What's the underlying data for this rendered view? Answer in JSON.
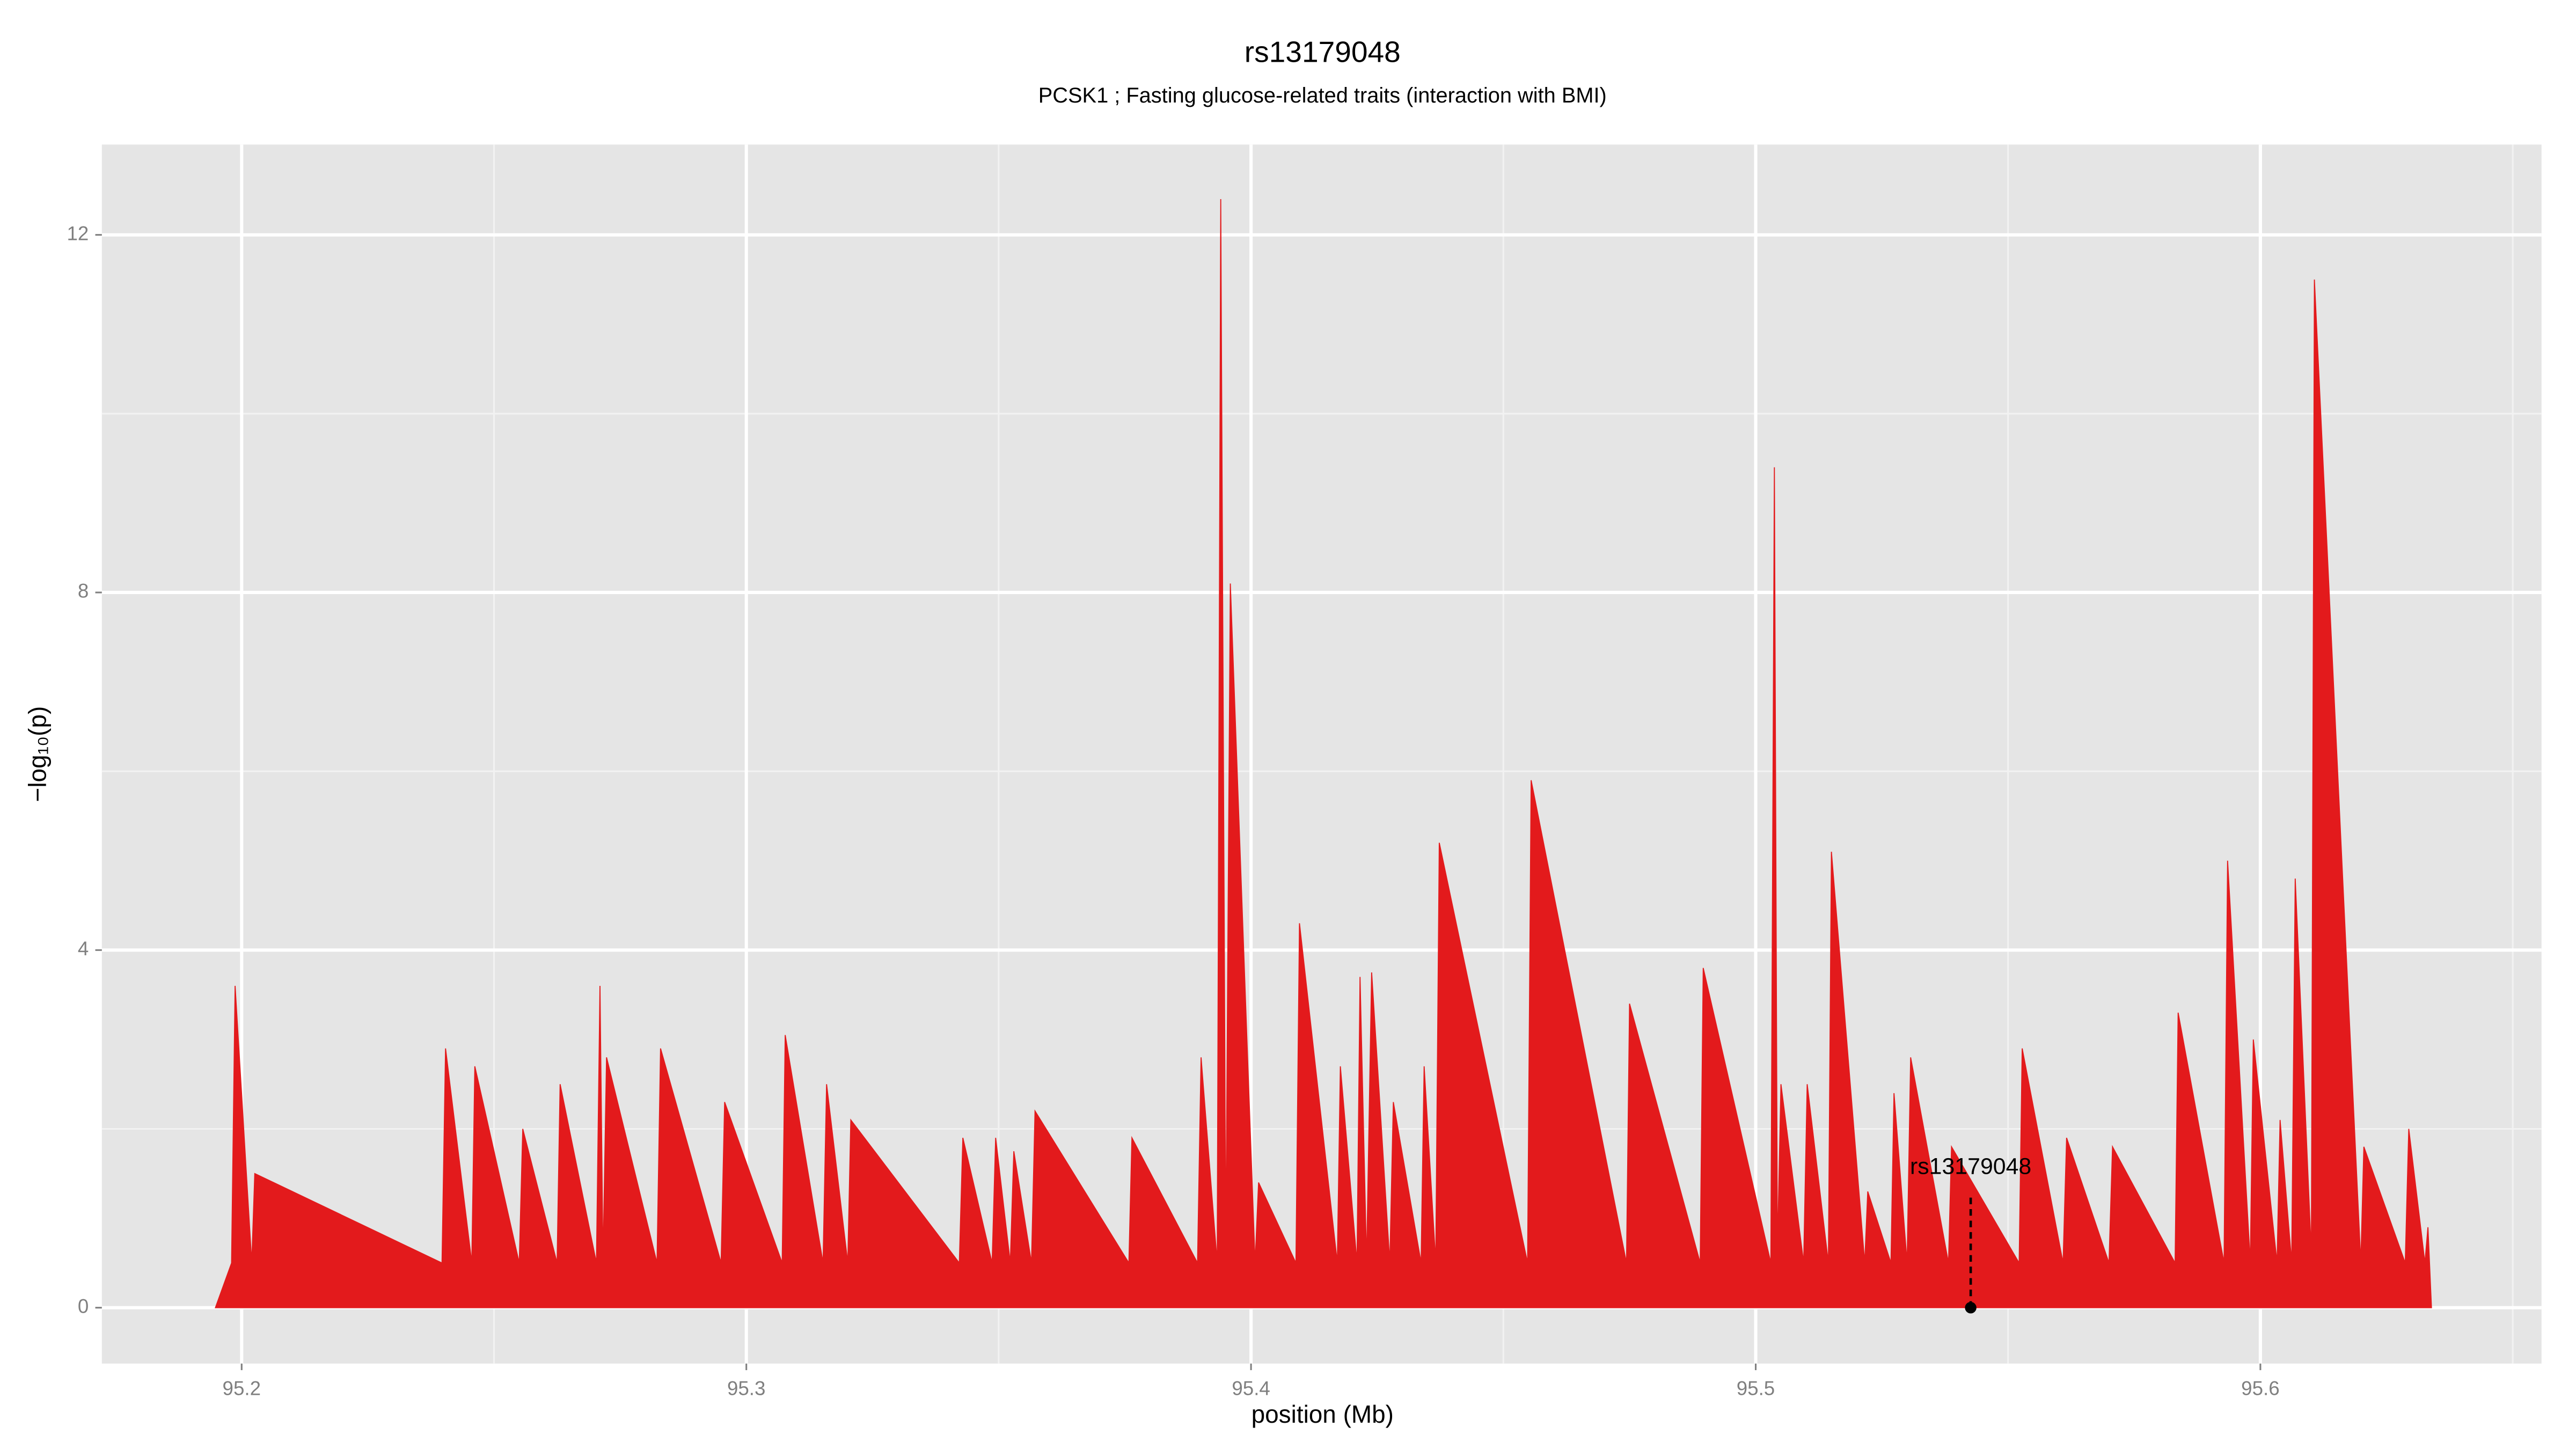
{
  "chart_data": {
    "type": "area",
    "title": "rs13179048",
    "subtitle": "PCSK1 ; Fasting glucose-related traits (interaction with BMI)",
    "x_label": "position (Mb)",
    "y_label": "−log₁₀(p)",
    "color": "#e31a1c",
    "x": [
      95.1948,
      95.198,
      95.1987,
      95.202,
      95.2026,
      95.2397,
      95.2404,
      95.2456,
      95.2462,
      95.255,
      95.2557,
      95.2625,
      95.2631,
      95.2703,
      95.271,
      95.2716,
      95.2723,
      95.2823,
      95.283,
      95.295,
      95.2957,
      95.3071,
      95.3077,
      95.3152,
      95.3159,
      95.3201,
      95.3207,
      95.3422,
      95.3429,
      95.3487,
      95.3494,
      95.3523,
      95.353,
      95.3565,
      95.3572,
      95.3758,
      95.3764,
      95.3894,
      95.3901,
      95.3933,
      95.394,
      95.395,
      95.3959,
      95.4008,
      95.4015,
      95.4089,
      95.4096,
      95.4171,
      95.4177,
      95.421,
      95.4216,
      95.4229,
      95.4239,
      95.4275,
      95.4282,
      95.4337,
      95.4343,
      95.4366,
      95.4373,
      95.4548,
      95.4555,
      95.4744,
      95.475,
      95.489,
      95.4896,
      95.503,
      95.5037,
      95.5043,
      95.505,
      95.5095,
      95.5102,
      95.5144,
      95.515,
      95.5216,
      95.5222,
      95.5268,
      95.5274,
      95.53,
      95.5307,
      95.5382,
      95.5388,
      95.5522,
      95.5528,
      95.5609,
      95.5616,
      95.57,
      95.5707,
      95.5831,
      95.5837,
      95.5928,
      95.5935,
      95.598,
      95.5986,
      95.6033,
      95.6039,
      95.6062,
      95.6069,
      95.6101,
      95.6107,
      95.6199,
      95.6205,
      95.6287,
      95.6294,
      95.6326,
      95.6332,
      95.6339
    ],
    "values": [
      0,
      0.5,
      3.6,
      0.5,
      1.5,
      0.5,
      2.9,
      0.5,
      2.7,
      0.5,
      2.0,
      0.5,
      2.5,
      0.5,
      3.6,
      0.5,
      2.8,
      0.5,
      2.9,
      0.5,
      2.3,
      0.5,
      3.05,
      0.5,
      2.5,
      0.5,
      2.1,
      0.5,
      1.9,
      0.5,
      1.9,
      0.5,
      1.75,
      0.5,
      2.2,
      0.5,
      1.9,
      0.5,
      2.8,
      0.5,
      12.4,
      0.6,
      8.1,
      0.5,
      1.4,
      0.5,
      4.3,
      0.5,
      2.7,
      0.5,
      3.7,
      0.5,
      3.75,
      0.5,
      2.3,
      0.5,
      2.7,
      0.5,
      5.2,
      0.5,
      5.9,
      0.5,
      3.4,
      0.5,
      3.8,
      0.5,
      9.4,
      0.6,
      2.5,
      0.5,
      2.5,
      0.5,
      5.1,
      0.5,
      1.3,
      0.5,
      2.4,
      0.5,
      2.8,
      0.5,
      1.8,
      0.5,
      2.9,
      0.5,
      1.9,
      0.5,
      1.8,
      0.5,
      3.3,
      0.5,
      5.0,
      0.5,
      3.0,
      0.5,
      2.1,
      0.5,
      4.8,
      0.6,
      11.5,
      0.5,
      1.8,
      0.5,
      2.0,
      0.5,
      0.9,
      0
    ],
    "annotation": {
      "label": "rs13179048",
      "x": 95.5426,
      "y": 1.25
    },
    "xlim": [
      95.1723,
      95.6557
    ],
    "ylim": [
      -0.625,
      13.01
    ],
    "xticks": [
      95.2,
      95.3,
      95.4,
      95.5,
      95.6
    ],
    "yticks": [
      0,
      4,
      8,
      12
    ],
    "grid": true,
    "minor_grid": true
  }
}
